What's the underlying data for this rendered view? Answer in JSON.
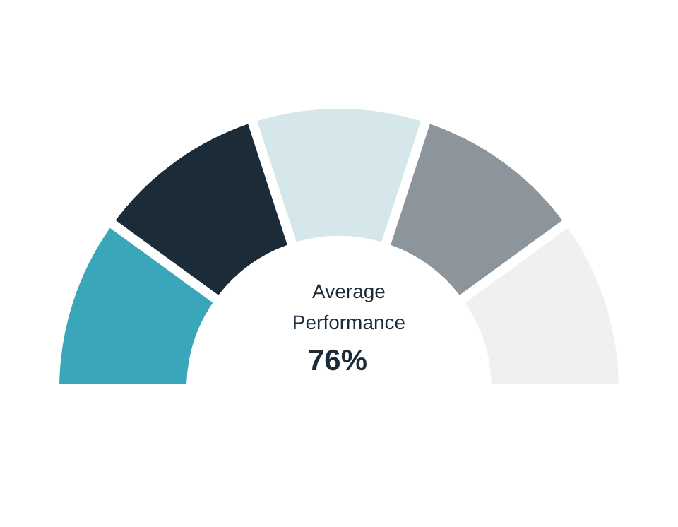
{
  "chart_data": {
    "type": "donut",
    "categories": [
      null,
      null,
      null,
      null,
      null
    ],
    "values": [
      20,
      20,
      20,
      20,
      20
    ],
    "colors": [
      "#3aa6b9",
      "#1b2b38",
      "#d6e7eb",
      "#8c959c",
      "#f0f0f0"
    ],
    "annotations": [
      "Average Performance",
      "76%"
    ]
  }
}
